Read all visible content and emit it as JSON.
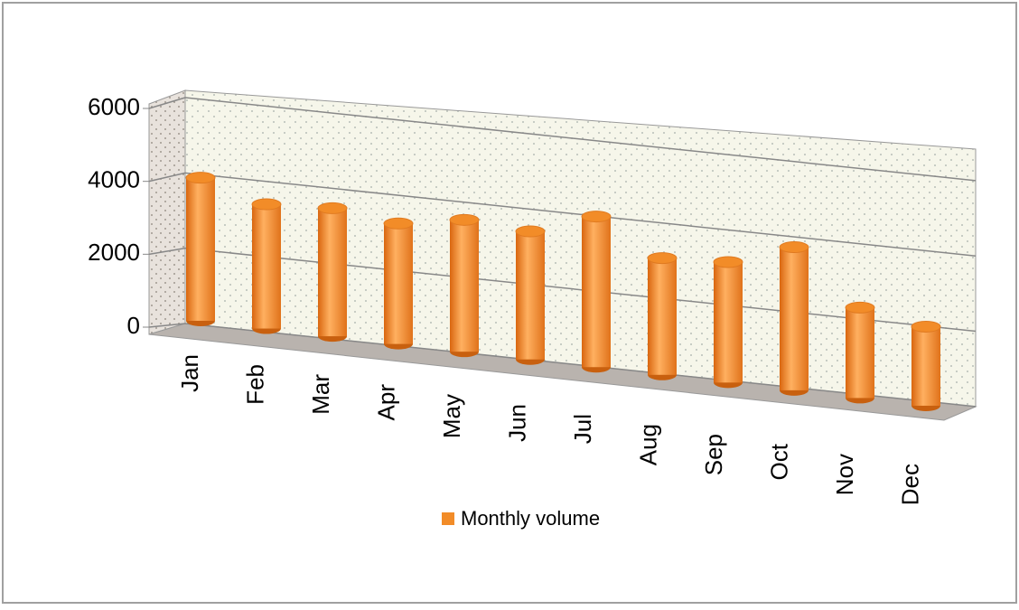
{
  "chart_data": {
    "type": "bar3d",
    "categories": [
      "Jan",
      "Feb",
      "Mar",
      "Apr",
      "May",
      "Jun",
      "Jul",
      "Aug",
      "Sep",
      "Oct",
      "Nov",
      "Dec"
    ],
    "series": [
      {
        "name": "Monthly volume",
        "color": "#f28c28",
        "values": [
          3800,
          3300,
          3400,
          3200,
          3500,
          3400,
          4000,
          3100,
          3200,
          3800,
          2400,
          2100
        ]
      }
    ],
    "ylim": [
      0,
      6000
    ],
    "yticks": [
      0,
      2000,
      4000,
      6000
    ],
    "grid": true,
    "legend": "bottom"
  }
}
